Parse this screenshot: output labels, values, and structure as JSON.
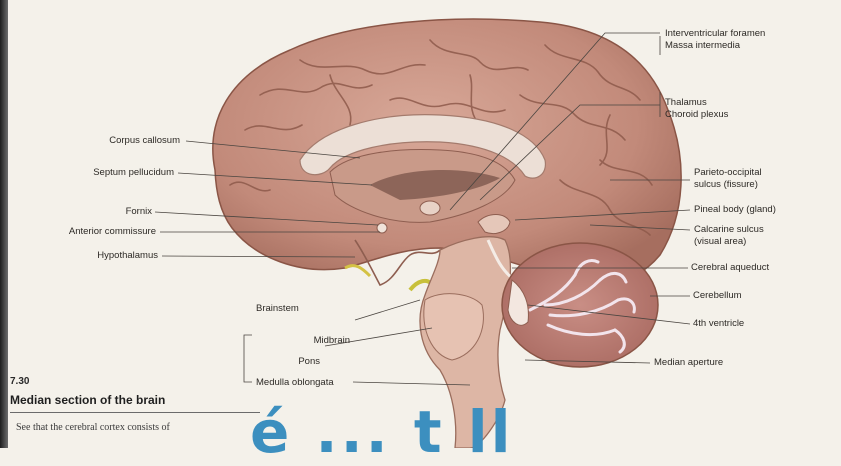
{
  "figure": {
    "number": "7.30",
    "title": "Median section of the brain",
    "body_text": "See that the cerebral cortex consists of",
    "overlay_text": "é ... t ll"
  },
  "labels_left": {
    "corpus_callosum": "Corpus callosum",
    "septum_pellucidum": "Septum pellucidum",
    "fornix": "Fornix",
    "anterior_commissure": "Anterior commissure",
    "hypothalamus": "Hypothalamus"
  },
  "labels_right": {
    "interventricular_foramen": "Interventricular foramen",
    "massa_intermedia": "Massa intermedia",
    "thalamus": "Thalamus",
    "choroid_plexus": "Choroid plexus",
    "parieto_occipital_1": "Parieto-occipital",
    "parieto_occipital_2": "sulcus (fissure)",
    "pineal_body": "Pineal body (gland)",
    "calcarine_1": "Calcarine sulcus",
    "calcarine_2": "(visual area)",
    "cerebral_aqueduct": "Cerebral aqueduct",
    "cerebellum": "Cerebellum",
    "fourth_ventricle": "4th ventricle",
    "median_aperture": "Median aperture"
  },
  "brainstem": {
    "heading": "Brainstem",
    "midbrain": "Midbrain",
    "pons": "Pons",
    "medulla": "Medulla oblongata"
  },
  "colors": {
    "cortex": "#c99384",
    "cortex_dark": "#9c6556",
    "callosum": "#eadcd2",
    "brainstem": "#dcb2a2",
    "cerebellum_white": "#f1e3ec",
    "overlay": "#3c8fbf"
  }
}
